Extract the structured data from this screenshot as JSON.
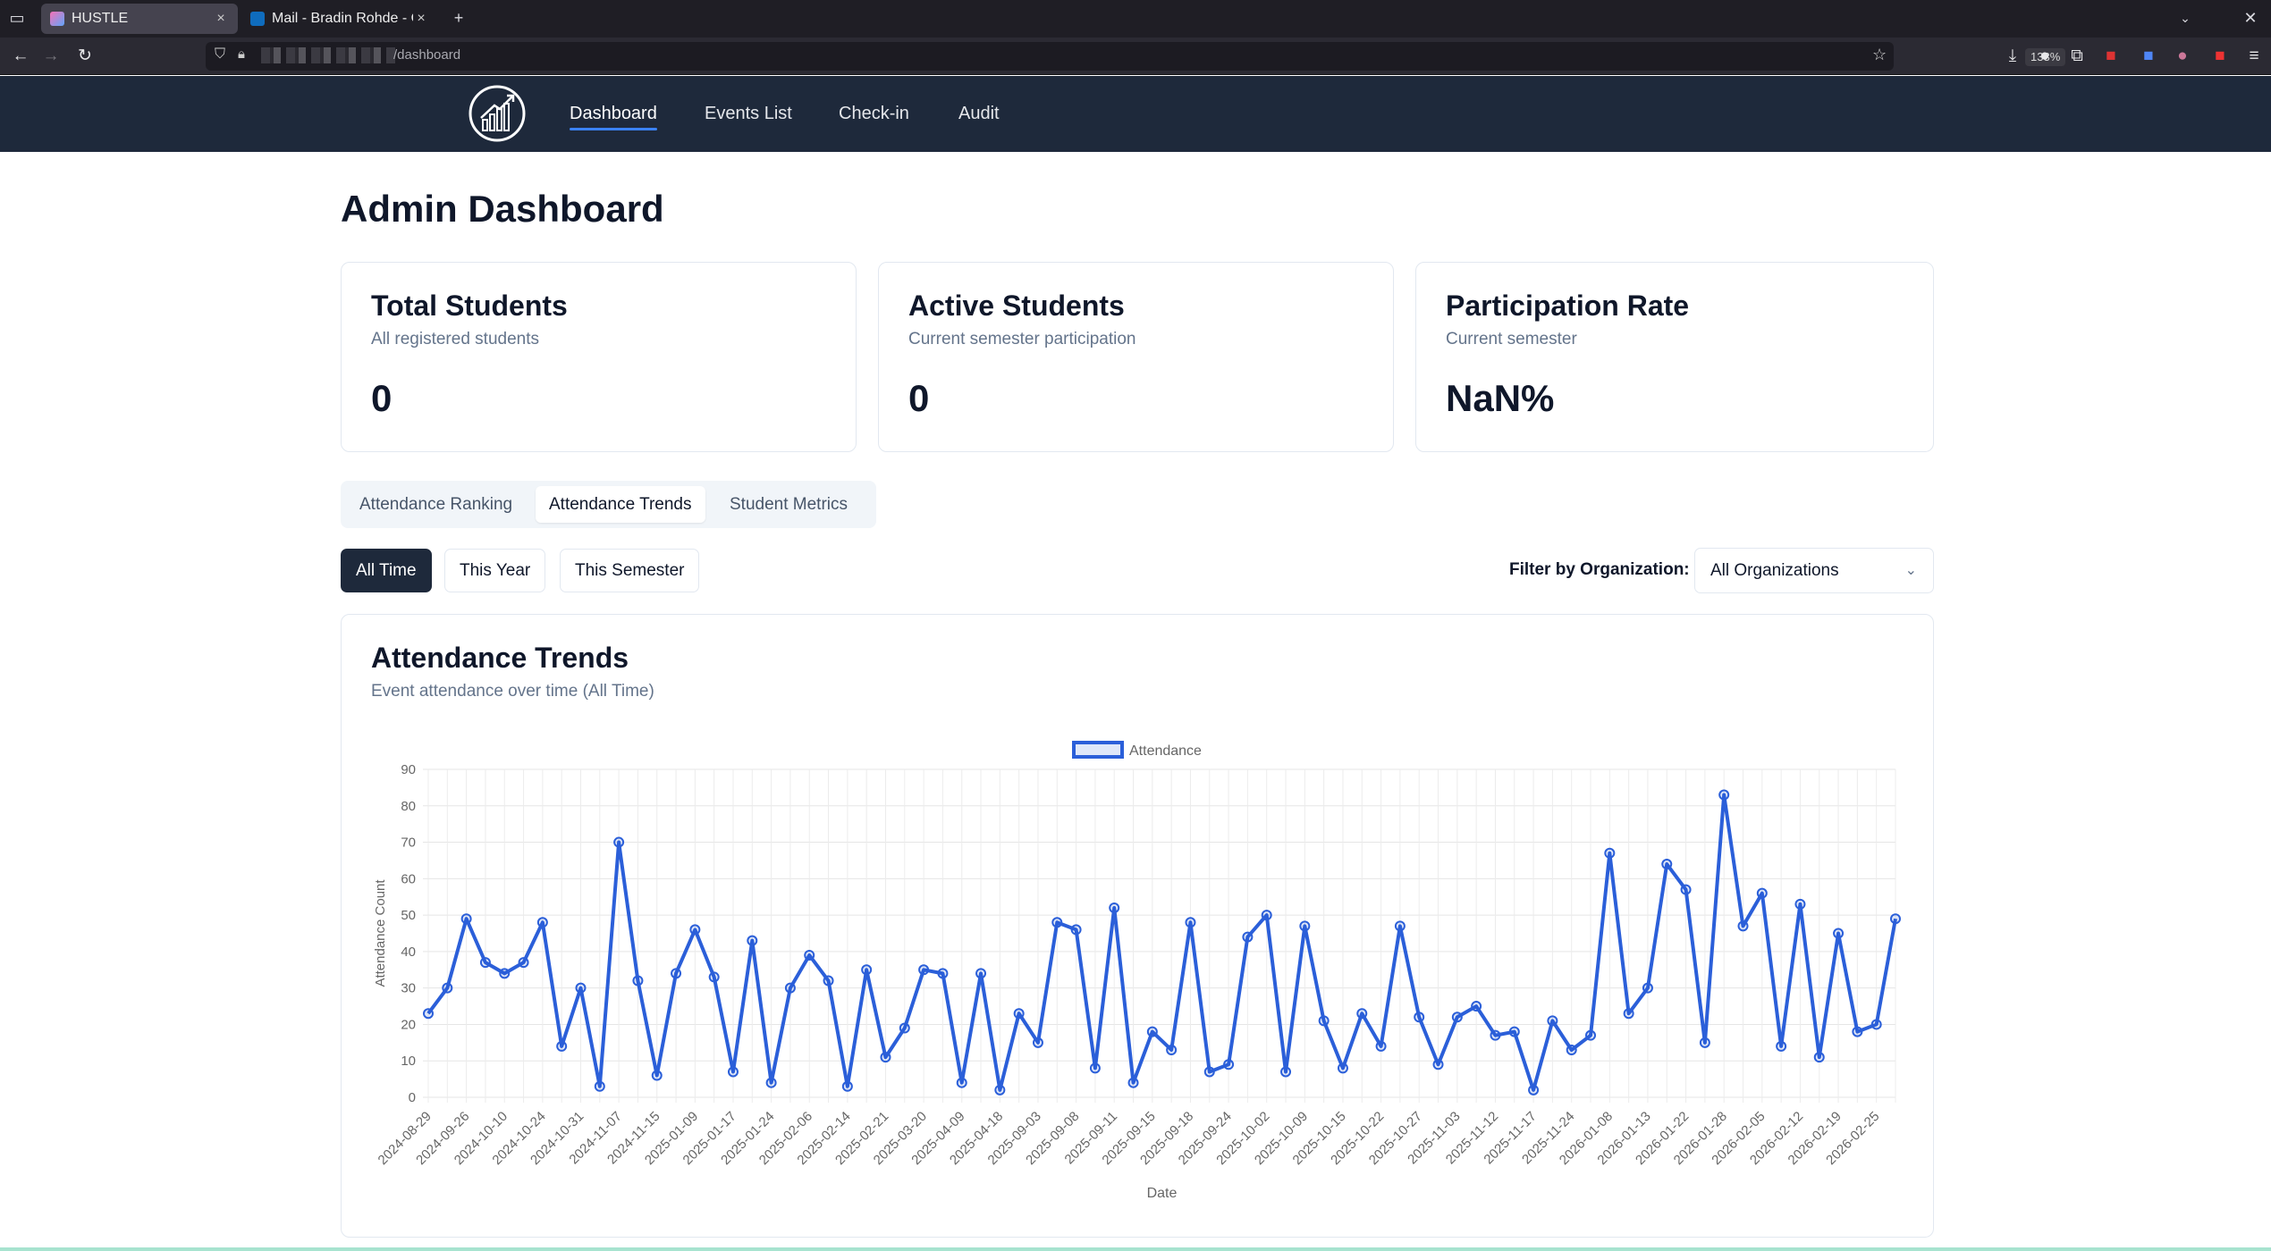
{
  "browser": {
    "tabs": [
      {
        "title": "HUSTLE",
        "close": "×"
      },
      {
        "title": "Mail - Bradin Rohde - Out",
        "close": "×"
      }
    ],
    "new_tab": "+",
    "url_path": "/dashboard",
    "zoom": "133%"
  },
  "nav": {
    "items": [
      "Dashboard",
      "Events List",
      "Check-in",
      "Audit"
    ],
    "active": "Dashboard"
  },
  "page": {
    "title": "Admin Dashboard"
  },
  "cards": [
    {
      "title": "Total Students",
      "subtitle": "All registered students",
      "value": "0"
    },
    {
      "title": "Active Students",
      "subtitle": "Current semester participation",
      "value": "0"
    },
    {
      "title": "Participation Rate",
      "subtitle": "Current semester",
      "value": "NaN%"
    }
  ],
  "tabs": {
    "items": [
      "Attendance Ranking",
      "Attendance Trends",
      "Student Metrics"
    ],
    "active": "Attendance Trends"
  },
  "time_filters": {
    "items": [
      "All Time",
      "This Year",
      "This Semester"
    ],
    "active": "All Time"
  },
  "org_filter": {
    "label": "Filter by Organization:",
    "value": "All Organizations"
  },
  "chart_card": {
    "title": "Attendance Trends",
    "subtitle": "Event attendance over time (All Time)"
  },
  "colors": {
    "line": "#2b5fd9",
    "header": "#1e293b",
    "active_underline": "#3b82f6"
  },
  "chart_data": {
    "type": "line",
    "legend": "Attendance",
    "legend_position": "top",
    "xlabel": "Date",
    "ylabel": "Attendance Count",
    "ylim": [
      0,
      90
    ],
    "yticks": [
      0,
      10,
      20,
      30,
      40,
      50,
      60,
      70,
      80,
      90
    ],
    "grid": true,
    "x_tick_labels": [
      "2024-08-29",
      "2024-09-26",
      "2024-10-10",
      "2024-10-24",
      "2024-10-31",
      "2024-11-07",
      "2024-11-15",
      "2025-01-09",
      "2025-01-17",
      "2025-01-24",
      "2025-02-06",
      "2025-02-14",
      "2025-02-21",
      "2025-03-20",
      "2025-04-09",
      "2025-04-18",
      "2025-09-03",
      "2025-09-08",
      "2025-09-11",
      "2025-09-15",
      "2025-09-18",
      "2025-09-24",
      "2025-10-02",
      "2025-10-09",
      "2025-10-15",
      "2025-10-22",
      "2025-10-27",
      "2025-11-03",
      "2025-11-12",
      "2025-11-17",
      "2025-11-24",
      "2026-01-08",
      "2026-01-13",
      "2026-01-22",
      "2026-01-28",
      "2026-02-05",
      "2026-02-12",
      "2026-02-19",
      "2026-02-25"
    ],
    "series": [
      {
        "name": "Attendance",
        "values": [
          23,
          30,
          49,
          37,
          34,
          37,
          48,
          14,
          30,
          3,
          70,
          32,
          6,
          34,
          46,
          33,
          7,
          43,
          4,
          30,
          39,
          32,
          3,
          35,
          11,
          19,
          35,
          34,
          4,
          34,
          2,
          23,
          15,
          48,
          46,
          8,
          52,
          4,
          18,
          13,
          48,
          7,
          9,
          44,
          50,
          7,
          47,
          21,
          8,
          23,
          14,
          47,
          22,
          9,
          22,
          25,
          17,
          18,
          2,
          21,
          13,
          17,
          67,
          23,
          30,
          64,
          57,
          15,
          83,
          47,
          56,
          14,
          53,
          11,
          45,
          18,
          20,
          49
        ]
      }
    ]
  }
}
